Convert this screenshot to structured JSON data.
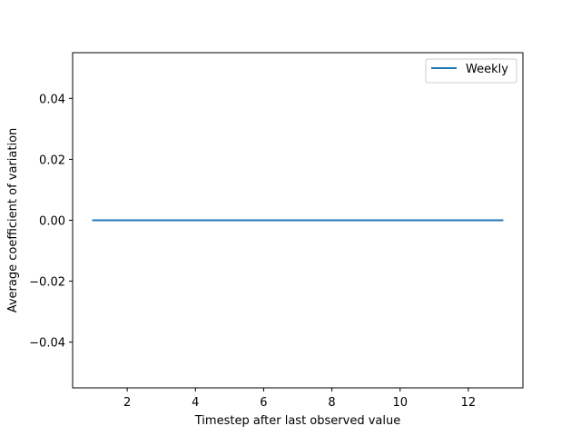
{
  "chart_data": {
    "type": "line",
    "xlabel": "Timestep after last observed value",
    "ylabel": "Average coefficient of variation",
    "xlim": [
      0.4,
      13.6
    ],
    "ylim": [
      -0.055,
      0.055
    ],
    "x_ticks": [
      2,
      4,
      6,
      8,
      10,
      12
    ],
    "x_tick_labels": [
      "2",
      "4",
      "6",
      "8",
      "10",
      "12"
    ],
    "y_ticks": [
      -0.04,
      -0.02,
      0.0,
      0.02,
      0.04
    ],
    "y_tick_labels": [
      "−0.04",
      "−0.02",
      "0.00",
      "0.02",
      "0.04"
    ],
    "grid": false,
    "legend_position": "top-right",
    "series": [
      {
        "name": "Weekly",
        "color": "#1f77b4",
        "x": [
          1,
          2,
          3,
          4,
          5,
          6,
          7,
          8,
          9,
          10,
          11,
          12,
          13
        ],
        "y": [
          0,
          0,
          0,
          0,
          0,
          0,
          0,
          0,
          0,
          0,
          0,
          0,
          0
        ]
      }
    ]
  }
}
